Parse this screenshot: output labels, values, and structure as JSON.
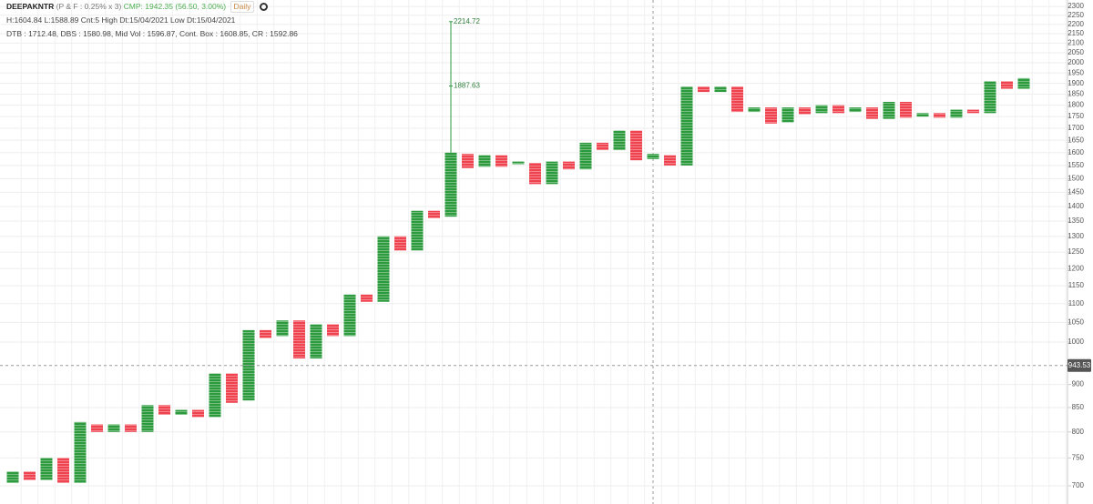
{
  "chart_data": {
    "type": "pnf",
    "title": "DEEPAKNTR",
    "subtitle": "(P & F : 0.25% x 3)",
    "cmp": "CMP: 1942.35 (56.50, 3.00%)",
    "interval": "Daily",
    "info_lines": [
      "H:1604.84 L:1588.89 Cnt:5 High Dt:15/04/2021 Low Dt:15/04/2021",
      "DTB : 1712.48, DBS : 1580.98, Mid Vol : 1596.87, Cont. Box : 1608.85, CR : 1592.86"
    ],
    "colors": {
      "up": "#2d9b3d",
      "down": "#ef4350"
    },
    "log_scale": true,
    "grid": true,
    "ylim": [
      669,
      2337
    ],
    "yticks": [
      700,
      750,
      800,
      850,
      900,
      1000,
      1050,
      1100,
      1150,
      1200,
      1250,
      1300,
      1350,
      1400,
      1450,
      1500,
      1550,
      1600,
      1650,
      1700,
      1750,
      1800,
      1850,
      1900,
      1950,
      2000,
      2050,
      2100,
      2150,
      2200,
      2250,
      2300
    ],
    "crosshair": 943.53,
    "columns": [
      {
        "direction": "up",
        "low": 705,
        "high": 725
      },
      {
        "direction": "down",
        "low": 710,
        "high": 725
      },
      {
        "direction": "up",
        "low": 710,
        "high": 750
      },
      {
        "direction": "down",
        "low": 705,
        "high": 750
      },
      {
        "direction": "up",
        "low": 705,
        "high": 820
      },
      {
        "direction": "down",
        "low": 800,
        "high": 815
      },
      {
        "direction": "up",
        "low": 800,
        "high": 815
      },
      {
        "direction": "down",
        "low": 800,
        "high": 815
      },
      {
        "direction": "up",
        "low": 800,
        "high": 855
      },
      {
        "direction": "down",
        "low": 835,
        "high": 855
      },
      {
        "direction": "up",
        "low": 835,
        "high": 845
      },
      {
        "direction": "down",
        "low": 830,
        "high": 845
      },
      {
        "direction": "up",
        "low": 830,
        "high": 925
      },
      {
        "direction": "down",
        "low": 860,
        "high": 925
      },
      {
        "direction": "up",
        "low": 865,
        "high": 1030
      },
      {
        "direction": "down",
        "low": 1010,
        "high": 1030
      },
      {
        "direction": "up",
        "low": 1015,
        "high": 1055
      },
      {
        "direction": "down",
        "low": 960,
        "high": 1055
      },
      {
        "direction": "up",
        "low": 960,
        "high": 1045
      },
      {
        "direction": "down",
        "low": 1015,
        "high": 1045
      },
      {
        "direction": "up",
        "low": 1015,
        "high": 1125
      },
      {
        "direction": "down",
        "low": 1105,
        "high": 1125
      },
      {
        "direction": "up",
        "low": 1105,
        "high": 1300
      },
      {
        "direction": "down",
        "low": 1255,
        "high": 1300
      },
      {
        "direction": "up",
        "low": 1255,
        "high": 1385
      },
      {
        "direction": "down",
        "low": 1360,
        "high": 1385
      },
      {
        "direction": "up",
        "low": 1365,
        "high": 1600,
        "wick": [
          1887.63,
          2214.72
        ]
      },
      {
        "direction": "down",
        "low": 1540,
        "high": 1595
      },
      {
        "direction": "up",
        "low": 1545,
        "high": 1590
      },
      {
        "direction": "down",
        "low": 1545,
        "high": 1590
      },
      {
        "direction": "up",
        "low": 1555,
        "high": 1565
      },
      {
        "direction": "down",
        "low": 1480,
        "high": 1560
      },
      {
        "direction": "up",
        "low": 1480,
        "high": 1565
      },
      {
        "direction": "down",
        "low": 1535,
        "high": 1565
      },
      {
        "direction": "up",
        "low": 1535,
        "high": 1640
      },
      {
        "direction": "down",
        "low": 1610,
        "high": 1640
      },
      {
        "direction": "up",
        "low": 1610,
        "high": 1690
      },
      {
        "direction": "down",
        "low": 1570,
        "high": 1690
      },
      {
        "direction": "up",
        "low": 1575,
        "high": 1595
      },
      {
        "direction": "down",
        "low": 1550,
        "high": 1590
      },
      {
        "direction": "up",
        "low": 1550,
        "high": 1885
      },
      {
        "direction": "down",
        "low": 1860,
        "high": 1885
      },
      {
        "direction": "up",
        "low": 1860,
        "high": 1885
      },
      {
        "direction": "down",
        "low": 1770,
        "high": 1885
      },
      {
        "direction": "up",
        "low": 1770,
        "high": 1790
      },
      {
        "direction": "down",
        "low": 1720,
        "high": 1790
      },
      {
        "direction": "up",
        "low": 1725,
        "high": 1790
      },
      {
        "direction": "down",
        "low": 1760,
        "high": 1790
      },
      {
        "direction": "up",
        "low": 1765,
        "high": 1800
      },
      {
        "direction": "down",
        "low": 1765,
        "high": 1800
      },
      {
        "direction": "up",
        "low": 1770,
        "high": 1790
      },
      {
        "direction": "down",
        "low": 1740,
        "high": 1790
      },
      {
        "direction": "up",
        "low": 1740,
        "high": 1815
      },
      {
        "direction": "down",
        "low": 1745,
        "high": 1815
      },
      {
        "direction": "up",
        "low": 1750,
        "high": 1765
      },
      {
        "direction": "down",
        "low": 1745,
        "high": 1765
      },
      {
        "direction": "up",
        "low": 1745,
        "high": 1780
      },
      {
        "direction": "down",
        "low": 1765,
        "high": 1780
      },
      {
        "direction": "up",
        "low": 1765,
        "high": 1910
      },
      {
        "direction": "down",
        "low": 1875,
        "high": 1910
      },
      {
        "direction": "up",
        "low": 1875,
        "high": 1925
      }
    ]
  }
}
